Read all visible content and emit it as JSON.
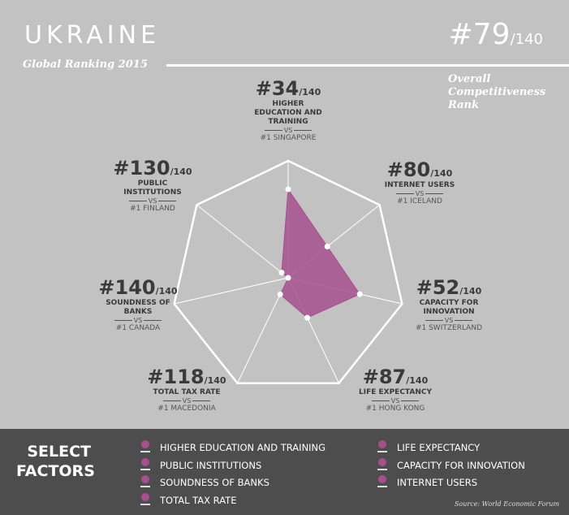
{
  "header": {
    "country": "UKRAINE",
    "subtitle": "Global Ranking 2015",
    "overall_rank": "#79",
    "overall_total": "/140",
    "overall_label_lines": [
      "Overall",
      "Competitiveness",
      "Rank"
    ]
  },
  "chart_data": {
    "type": "radar",
    "scale_max": 140,
    "note_scale": "rank out of 140; better rank plots farther from center",
    "colors": {
      "fill": "#a6508e",
      "grid": "#ffffff"
    },
    "axes": [
      {
        "factor_lines": [
          "HIGHER",
          "EDUCATION AND",
          "TRAINING"
        ],
        "rank": 34,
        "rank_label": "#34",
        "total": "/140",
        "vs": "VS",
        "leader": "#1 SINGAPORE"
      },
      {
        "factor_lines": [
          "INTERNET USERS"
        ],
        "rank": 80,
        "rank_label": "#80",
        "total": "/140",
        "vs": "VS",
        "leader": "#1 ICELAND"
      },
      {
        "factor_lines": [
          "CAPACITY FOR",
          "INNOVATION"
        ],
        "rank": 52,
        "rank_label": "#52",
        "total": "/140",
        "vs": "VS",
        "leader": "#1 SWITZERLAND"
      },
      {
        "factor_lines": [
          "LIFE EXPECTANCY"
        ],
        "rank": 87,
        "rank_label": "#87",
        "total": "/140",
        "vs": "VS",
        "leader": "#1 HONG KONG"
      },
      {
        "factor_lines": [
          "TOTAL TAX RATE"
        ],
        "rank": 118,
        "rank_label": "#118",
        "total": "/140",
        "vs": "VS",
        "leader": "#1 MACEDONIA"
      },
      {
        "factor_lines": [
          "SOUNDNESS OF",
          "BANKS"
        ],
        "rank": 140,
        "rank_label": "#140",
        "total": "/140",
        "vs": "VS",
        "leader": "#1 CANADA"
      },
      {
        "factor_lines": [
          "PUBLIC",
          "INSTITUTIONS"
        ],
        "rank": 130,
        "rank_label": "#130",
        "total": "/140",
        "vs": "VS",
        "leader": "#1 FINLAND"
      }
    ]
  },
  "factors": {
    "title_lines": [
      "SELECT",
      "FACTORS"
    ],
    "items": [
      "HIGHER EDUCATION AND TRAINING",
      "PUBLIC INSTITUTIONS",
      "SOUNDNESS OF BANKS",
      "TOTAL TAX RATE",
      "LIFE EXPECTANCY",
      "CAPACITY FOR INNOVATION",
      "INTERNET USERS"
    ]
  },
  "source": "Source: World Economic Forum"
}
